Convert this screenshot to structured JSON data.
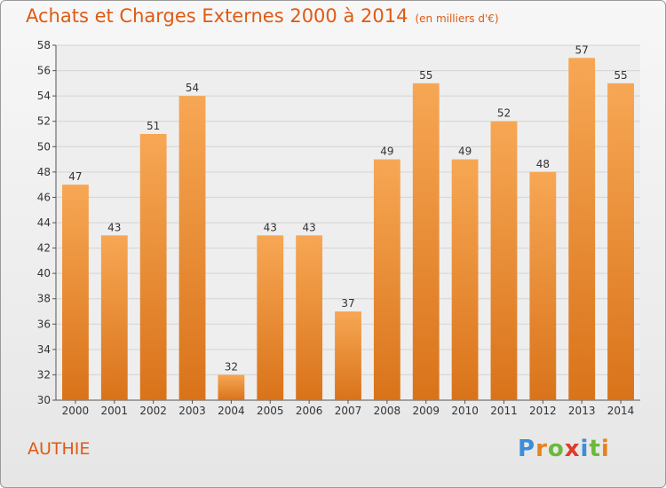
{
  "chart_data": {
    "type": "bar",
    "title": "Achats et Charges Externes 2000 à 2014",
    "subtitle": "(en milliers d'€)",
    "categories": [
      "2000",
      "2001",
      "2002",
      "2003",
      "2004",
      "2005",
      "2006",
      "2007",
      "2008",
      "2009",
      "2010",
      "2011",
      "2012",
      "2013",
      "2014"
    ],
    "values": [
      47,
      43,
      51,
      54,
      32,
      43,
      43,
      37,
      49,
      55,
      49,
      52,
      48,
      57,
      55
    ],
    "ylim": [
      30,
      58
    ],
    "yticks": [
      30,
      32,
      34,
      36,
      38,
      40,
      42,
      44,
      46,
      48,
      50,
      52,
      54,
      56,
      58
    ],
    "grid": true,
    "bar_color_top": "#f7a754",
    "bar_color_bottom": "#d9731a"
  },
  "commune": "AUTHIE",
  "logo": {
    "letters": [
      "P",
      "r",
      "o",
      "x",
      "i",
      "t",
      "i"
    ],
    "colors": [
      "#3a8fd8",
      "#e8831d",
      "#6cb83a",
      "#e03a2a",
      "#3a8fd8",
      "#6cb83a",
      "#e8831d"
    ]
  }
}
